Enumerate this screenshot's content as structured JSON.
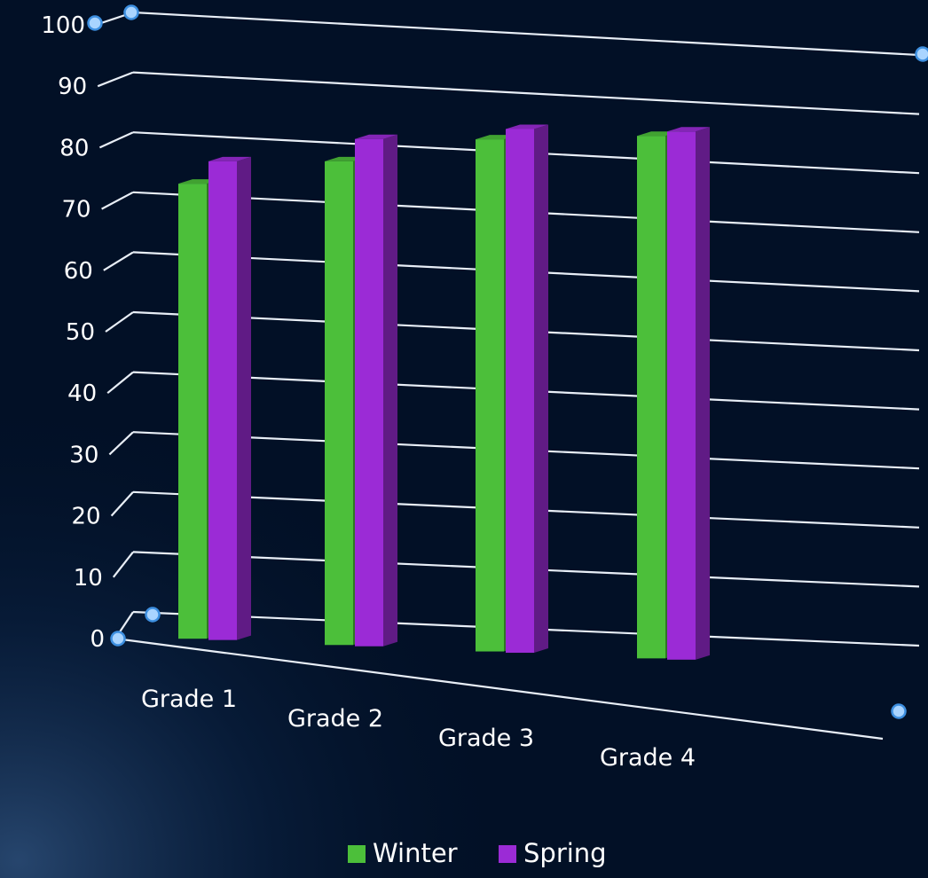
{
  "chart_data": {
    "type": "bar",
    "title": "",
    "xlabel": "",
    "ylabel": "",
    "categories": [
      "Grade 1",
      "Grade 2",
      "Grade 3",
      "Grade 4"
    ],
    "series": [
      {
        "name": "Winter",
        "values": [
          73,
          78,
          83,
          85
        ],
        "color": "#4cbf3a"
      },
      {
        "name": "Spring",
        "values": [
          77,
          82,
          85,
          86
        ],
        "color": "#9b2bd6"
      }
    ],
    "ylim": [
      0,
      100
    ],
    "yticks": [
      "0",
      "10",
      "20",
      "30",
      "40",
      "50",
      "60",
      "70",
      "80",
      "90",
      "100"
    ],
    "grid": true,
    "legend": "bottom",
    "perspective": "3d"
  }
}
